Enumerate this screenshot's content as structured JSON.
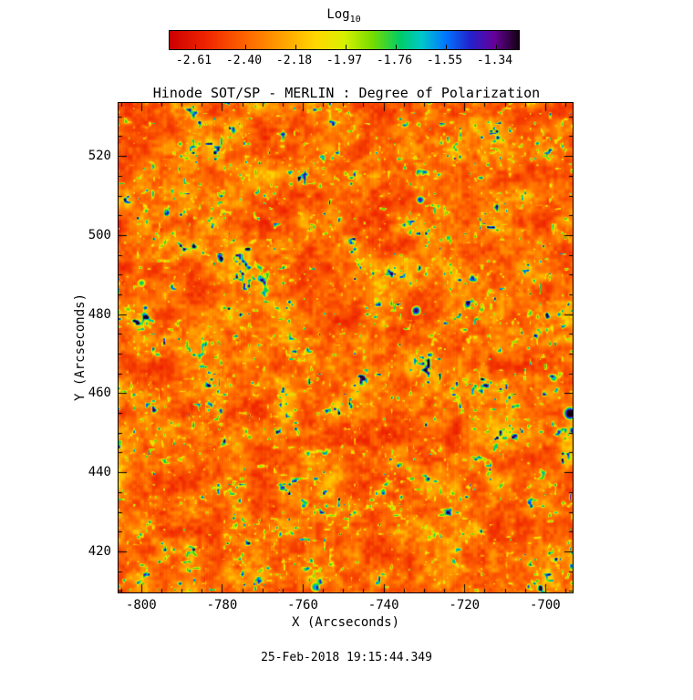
{
  "title": "Hinode SOT/SP - MERLIN : Degree of Polarization",
  "timestamp": "25-Feb-2018 19:15:44.349",
  "chart_data": {
    "type": "heatmap",
    "title": "Hinode SOT/SP - MERLIN : Degree of Polarization",
    "xlabel": "X (Arcseconds)",
    "ylabel": "Y (Arcseconds)",
    "x_ticks": [
      -800,
      -780,
      -760,
      -740,
      -720,
      -700
    ],
    "y_ticks": [
      420,
      440,
      460,
      480,
      500,
      520
    ],
    "x_range": [
      -805.6,
      -693.2
    ],
    "y_range": [
      409.6,
      533.4
    ],
    "minor_tick_step": 5,
    "grid": false,
    "colorbar": {
      "label_main": "Log",
      "label_sub": "10",
      "tick_labels": [
        "-2.61",
        "-2.40",
        "-2.18",
        "-1.97",
        "-1.76",
        "-1.55",
        "-1.34"
      ],
      "value_min": -2.61,
      "value_max": -1.34,
      "orientation": "horizontal-top",
      "stops": [
        {
          "t": 0.0,
          "color": "#cc0000"
        },
        {
          "t": 0.1,
          "color": "#ee2200"
        },
        {
          "t": 0.22,
          "color": "#ff6600"
        },
        {
          "t": 0.33,
          "color": "#ffa500"
        },
        {
          "t": 0.42,
          "color": "#ffd800"
        },
        {
          "t": 0.5,
          "color": "#d8f000"
        },
        {
          "t": 0.58,
          "color": "#77dd00"
        },
        {
          "t": 0.66,
          "color": "#00cc66"
        },
        {
          "t": 0.72,
          "color": "#00c8c8"
        },
        {
          "t": 0.79,
          "color": "#0077ff"
        },
        {
          "t": 0.86,
          "color": "#2222cc"
        },
        {
          "t": 0.93,
          "color": "#660099"
        },
        {
          "t": 1.0,
          "color": "#140014"
        }
      ]
    },
    "distribution": {
      "description": "Solar granulation-like polarization map: predominantly red-orange background (log10 ~ -2.5 to -2.3) with scattered small green/yellow speckles (~ -2.1 to -1.9) and rare blue/dark spots (~ -1.6 to -1.34)",
      "background_log10_range": [
        -2.55,
        -2.25
      ],
      "speckle_log10_range": [
        -2.1,
        -1.85
      ],
      "rare_spot_log10_range": [
        -1.6,
        -1.34
      ]
    },
    "notable_spots": [
      {
        "x": -731,
        "y": 509,
        "radius_px": 5,
        "strength": 0.7
      },
      {
        "x": -732,
        "y": 481,
        "radius_px": 6,
        "strength": 0.85
      },
      {
        "x": -694,
        "y": 455,
        "radius_px": 8,
        "strength": 0.95
      },
      {
        "x": -757,
        "y": 411,
        "radius_px": 6,
        "strength": 0.55
      },
      {
        "x": -698,
        "y": 464,
        "radius_px": 5,
        "strength": 0.5
      },
      {
        "x": -800,
        "y": 488,
        "radius_px": 5,
        "strength": 0.45
      }
    ]
  }
}
